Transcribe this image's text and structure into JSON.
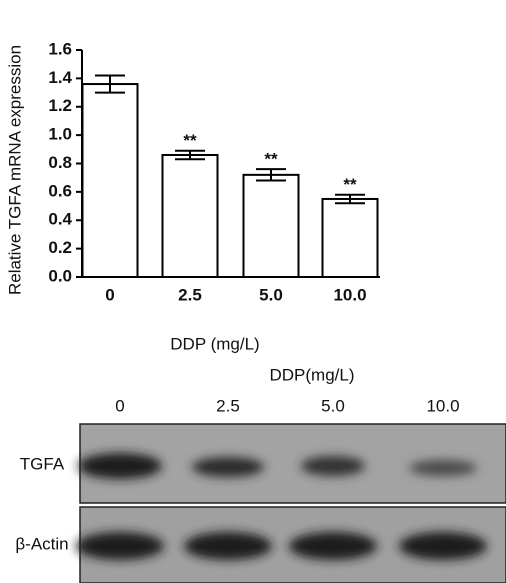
{
  "chart_data": {
    "type": "bar",
    "y_label": "Relative TGFA mRNA expression",
    "x_label": "DDP (mg/L)",
    "categories": [
      "0",
      "2.5",
      "5.0",
      "10.0"
    ],
    "values": [
      1.36,
      0.86,
      0.72,
      0.55
    ],
    "errors": [
      0.06,
      0.03,
      0.04,
      0.03
    ],
    "significance": [
      null,
      "**",
      "**",
      "**"
    ],
    "color": "#ffffff",
    "ylim": [
      0,
      1.6
    ],
    "yticks": [
      {
        "value": 0,
        "label": "0.0"
      },
      0.2,
      0.4,
      0.6,
      0.8,
      {
        "value": 1,
        "label": "1.0"
      },
      1.2,
      1.4,
      1.6
    ]
  },
  "blot": {
    "title": "DDP(mg/L)",
    "lanes": [
      "0",
      "2.5",
      "5.0",
      "10.0"
    ],
    "rows": [
      "TGFA",
      "β-Actin"
    ]
  }
}
